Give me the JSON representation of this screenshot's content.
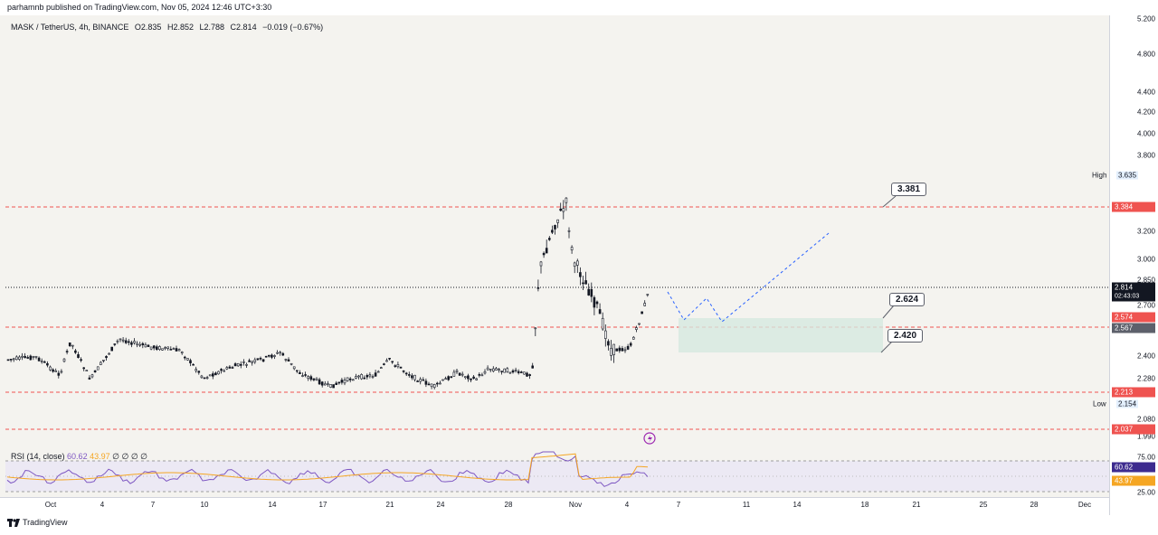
{
  "header": {
    "published_line": "parhamnb published on TradingView.com, Nov 05, 2024 12:46 UTC+3:30"
  },
  "symbol": {
    "name": "MASK / TetherUS, 4h, BINANCE",
    "open": "O2.835",
    "high": "H2.852",
    "low": "L2.788",
    "close": "C2.814",
    "change": "−0.019 (−0.67%)"
  },
  "rsi": {
    "label": "RSI (14, close)",
    "value": "60.62",
    "ma": "43.97",
    "extra": "∅ ∅ ∅ ∅"
  },
  "price_axis": {
    "ticks": [
      "5.200",
      "4.800",
      "4.400",
      "4.200",
      "4.000",
      "3.800",
      "3.200",
      "3.000",
      "2.850",
      "2.700",
      "2.400",
      "2.280",
      "2.080",
      "1.990"
    ],
    "high_label": "High",
    "high_value": "3.635",
    "low_label": "Low",
    "low_value": "2.154",
    "current_price": "2.814",
    "countdown": "02:43:03",
    "level_badges": [
      "3.384",
      "2.574",
      "2.567",
      "2.213",
      "2.037"
    ],
    "rsi_ticks": [
      "75.00",
      "25.00"
    ],
    "rsi_value_badge": "60.62",
    "rsi_ma_badge": "43.97"
  },
  "callouts": [
    "3.381",
    "2.624",
    "2.420"
  ],
  "time_axis": [
    "Oct",
    "4",
    "7",
    "10",
    "14",
    "17",
    "21",
    "24",
    "28",
    "Nov",
    "4",
    "7",
    "11",
    "14",
    "18",
    "21",
    "25",
    "28",
    "Dec"
  ],
  "footer": {
    "brand": "TradingView"
  },
  "colors": {
    "bull": "#131722",
    "level": "#ef5350",
    "zone": "#d6e8e0",
    "projection": "#2962ff",
    "rsi": "#7e57c2",
    "rsi_ma": "#f5a623"
  }
}
